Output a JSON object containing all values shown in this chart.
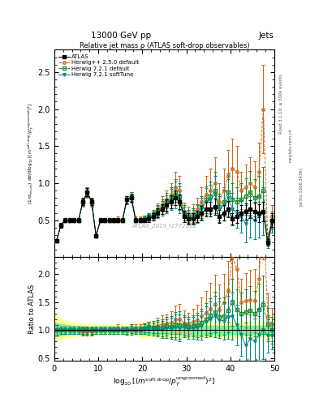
{
  "title_top": "13000 GeV pp",
  "title_right": "Jets",
  "plot_title": "Relative jet mass ρ (ATLAS soft-drop observables)",
  "ylabel_ratio": "Ratio to ATLAS",
  "watermark": "ATLAS_2019_I1772062",
  "right_label1": "Rivet 3.1.10; ≥ 500k events",
  "right_label2": "mcplots.cern.ch",
  "right_label3": "[arXiv:1306.3436]",
  "xlim": [
    0,
    50
  ],
  "ylim_main": [
    0.0,
    2.8
  ],
  "ylim_ratio": [
    0.45,
    2.3
  ],
  "yticks_main": [
    0.5,
    1.0,
    1.5,
    2.0,
    2.5
  ],
  "yticks_ratio": [
    0.5,
    1.0,
    1.5,
    2.0
  ],
  "xticks": [
    0,
    10,
    20,
    30,
    40,
    50
  ],
  "x": [
    0.5,
    1.5,
    2.5,
    3.5,
    4.5,
    5.5,
    6.5,
    7.5,
    8.5,
    9.5,
    10.5,
    11.5,
    12.5,
    13.5,
    14.5,
    15.5,
    16.5,
    17.5,
    18.5,
    19.5,
    20.5,
    21.5,
    22.5,
    23.5,
    24.5,
    25.5,
    26.5,
    27.5,
    28.5,
    29.5,
    30.5,
    31.5,
    32.5,
    33.5,
    34.5,
    35.5,
    36.5,
    37.5,
    38.5,
    39.5,
    40.5,
    41.5,
    42.5,
    43.5,
    44.5,
    45.5,
    46.5,
    47.5,
    48.5,
    49.5
  ],
  "atlas_y": [
    0.22,
    0.43,
    0.5,
    0.5,
    0.5,
    0.5,
    0.75,
    0.88,
    0.75,
    0.29,
    0.5,
    0.5,
    0.5,
    0.5,
    0.5,
    0.5,
    0.78,
    0.8,
    0.5,
    0.5,
    0.5,
    0.52,
    0.55,
    0.6,
    0.65,
    0.7,
    0.75,
    0.8,
    0.75,
    0.55,
    0.52,
    0.52,
    0.55,
    0.6,
    0.65,
    0.65,
    0.68,
    0.55,
    0.6,
    0.65,
    0.52,
    0.55,
    0.6,
    0.62,
    0.65,
    0.62,
    0.6,
    0.62,
    0.2,
    0.5
  ],
  "atlas_yerr": [
    0.02,
    0.03,
    0.03,
    0.03,
    0.03,
    0.03,
    0.04,
    0.05,
    0.04,
    0.02,
    0.03,
    0.03,
    0.03,
    0.03,
    0.03,
    0.03,
    0.05,
    0.05,
    0.03,
    0.03,
    0.03,
    0.04,
    0.05,
    0.06,
    0.07,
    0.08,
    0.09,
    0.1,
    0.1,
    0.08,
    0.07,
    0.07,
    0.08,
    0.09,
    0.1,
    0.1,
    0.11,
    0.09,
    0.1,
    0.11,
    0.08,
    0.09,
    0.1,
    0.11,
    0.12,
    0.12,
    0.12,
    0.13,
    0.04,
    0.09
  ],
  "hpp_y": [
    0.22,
    0.43,
    0.5,
    0.5,
    0.5,
    0.5,
    0.73,
    0.86,
    0.73,
    0.29,
    0.5,
    0.5,
    0.5,
    0.5,
    0.52,
    0.5,
    0.78,
    0.82,
    0.52,
    0.52,
    0.52,
    0.55,
    0.58,
    0.65,
    0.72,
    0.78,
    0.85,
    0.95,
    0.9,
    0.62,
    0.58,
    0.6,
    0.65,
    0.75,
    0.85,
    0.9,
    1.0,
    0.75,
    0.9,
    1.1,
    1.2,
    1.15,
    0.9,
    0.95,
    1.0,
    0.95,
    1.15,
    2.0,
    0.25,
    0.55
  ],
  "hpp_yerr": [
    0.02,
    0.03,
    0.03,
    0.03,
    0.03,
    0.03,
    0.05,
    0.06,
    0.05,
    0.02,
    0.03,
    0.03,
    0.03,
    0.03,
    0.03,
    0.03,
    0.05,
    0.06,
    0.03,
    0.03,
    0.04,
    0.05,
    0.06,
    0.08,
    0.1,
    0.12,
    0.15,
    0.2,
    0.2,
    0.12,
    0.1,
    0.12,
    0.15,
    0.2,
    0.25,
    0.3,
    0.35,
    0.25,
    0.3,
    0.35,
    0.4,
    0.35,
    0.25,
    0.3,
    0.35,
    0.35,
    0.4,
    0.6,
    0.08,
    0.15
  ],
  "h721d_y": [
    0.22,
    0.43,
    0.5,
    0.5,
    0.5,
    0.5,
    0.75,
    0.88,
    0.75,
    0.29,
    0.5,
    0.5,
    0.5,
    0.5,
    0.5,
    0.5,
    0.78,
    0.82,
    0.5,
    0.5,
    0.52,
    0.55,
    0.58,
    0.63,
    0.68,
    0.75,
    0.8,
    0.88,
    0.82,
    0.6,
    0.55,
    0.56,
    0.6,
    0.68,
    0.78,
    0.82,
    0.9,
    0.68,
    0.75,
    0.88,
    0.78,
    0.75,
    0.78,
    0.82,
    0.88,
    0.8,
    0.82,
    0.9,
    0.22,
    0.5
  ],
  "h721d_yerr": [
    0.02,
    0.03,
    0.03,
    0.03,
    0.03,
    0.03,
    0.05,
    0.06,
    0.05,
    0.02,
    0.03,
    0.03,
    0.03,
    0.03,
    0.03,
    0.03,
    0.05,
    0.06,
    0.03,
    0.03,
    0.04,
    0.05,
    0.06,
    0.08,
    0.1,
    0.12,
    0.14,
    0.18,
    0.18,
    0.1,
    0.09,
    0.1,
    0.12,
    0.15,
    0.18,
    0.2,
    0.25,
    0.18,
    0.2,
    0.25,
    0.22,
    0.2,
    0.22,
    0.25,
    0.28,
    0.25,
    0.28,
    0.32,
    0.06,
    0.12
  ],
  "h721s_y": [
    0.22,
    0.43,
    0.5,
    0.5,
    0.5,
    0.5,
    0.74,
    0.87,
    0.74,
    0.29,
    0.5,
    0.5,
    0.5,
    0.5,
    0.5,
    0.5,
    0.77,
    0.8,
    0.5,
    0.5,
    0.51,
    0.53,
    0.56,
    0.61,
    0.66,
    0.72,
    0.78,
    0.84,
    0.78,
    0.58,
    0.53,
    0.54,
    0.58,
    0.65,
    0.75,
    0.78,
    0.85,
    0.65,
    0.7,
    0.8,
    0.65,
    0.6,
    0.55,
    0.45,
    0.55,
    0.5,
    0.55,
    0.62,
    0.18,
    0.45
  ],
  "h721s_yerr": [
    0.02,
    0.03,
    0.03,
    0.03,
    0.03,
    0.03,
    0.05,
    0.06,
    0.05,
    0.02,
    0.03,
    0.03,
    0.03,
    0.03,
    0.03,
    0.03,
    0.05,
    0.06,
    0.03,
    0.03,
    0.04,
    0.05,
    0.06,
    0.08,
    0.1,
    0.12,
    0.14,
    0.18,
    0.18,
    0.1,
    0.09,
    0.1,
    0.12,
    0.15,
    0.18,
    0.2,
    0.25,
    0.18,
    0.2,
    0.25,
    0.22,
    0.2,
    0.22,
    0.25,
    0.28,
    0.25,
    0.28,
    0.32,
    0.06,
    0.12
  ],
  "band_x": [
    0,
    2,
    4,
    6,
    8,
    10,
    12,
    14,
    16,
    18,
    20,
    22,
    24,
    26,
    28,
    30,
    32,
    34,
    36,
    38,
    40,
    42,
    44,
    46,
    48,
    50
  ],
  "band_ylo_outer": [
    0.78,
    0.85,
    0.88,
    0.9,
    0.92,
    0.92,
    0.92,
    0.92,
    0.92,
    0.92,
    0.87,
    0.87,
    0.87,
    0.87,
    0.87,
    0.87,
    0.87,
    0.87,
    0.87,
    0.87,
    0.87,
    0.87,
    0.87,
    0.87,
    0.87,
    0.87
  ],
  "band_yhi_outer": [
    1.28,
    1.18,
    1.14,
    1.12,
    1.1,
    1.1,
    1.1,
    1.1,
    1.1,
    1.1,
    1.15,
    1.15,
    1.15,
    1.15,
    1.15,
    1.15,
    1.15,
    1.15,
    1.15,
    1.15,
    1.15,
    1.15,
    1.15,
    1.15,
    1.15,
    1.15
  ],
  "band_ylo_inner": [
    0.88,
    0.92,
    0.94,
    0.95,
    0.96,
    0.96,
    0.96,
    0.96,
    0.96,
    0.96,
    0.93,
    0.93,
    0.93,
    0.93,
    0.93,
    0.93,
    0.93,
    0.93,
    0.93,
    0.93,
    0.93,
    0.93,
    0.93,
    0.93,
    0.93,
    0.93
  ],
  "band_yhi_inner": [
    1.14,
    1.1,
    1.08,
    1.07,
    1.06,
    1.06,
    1.06,
    1.06,
    1.06,
    1.06,
    1.08,
    1.08,
    1.08,
    1.08,
    1.08,
    1.08,
    1.08,
    1.08,
    1.08,
    1.08,
    1.08,
    1.08,
    1.08,
    1.08,
    1.08,
    1.08
  ],
  "color_atlas": "#000000",
  "color_hpp": "#d4691e",
  "color_h721d": "#228b22",
  "color_h721s": "#008b8b",
  "color_band_yellow": "#ffffa0",
  "color_band_green": "#90ee90"
}
